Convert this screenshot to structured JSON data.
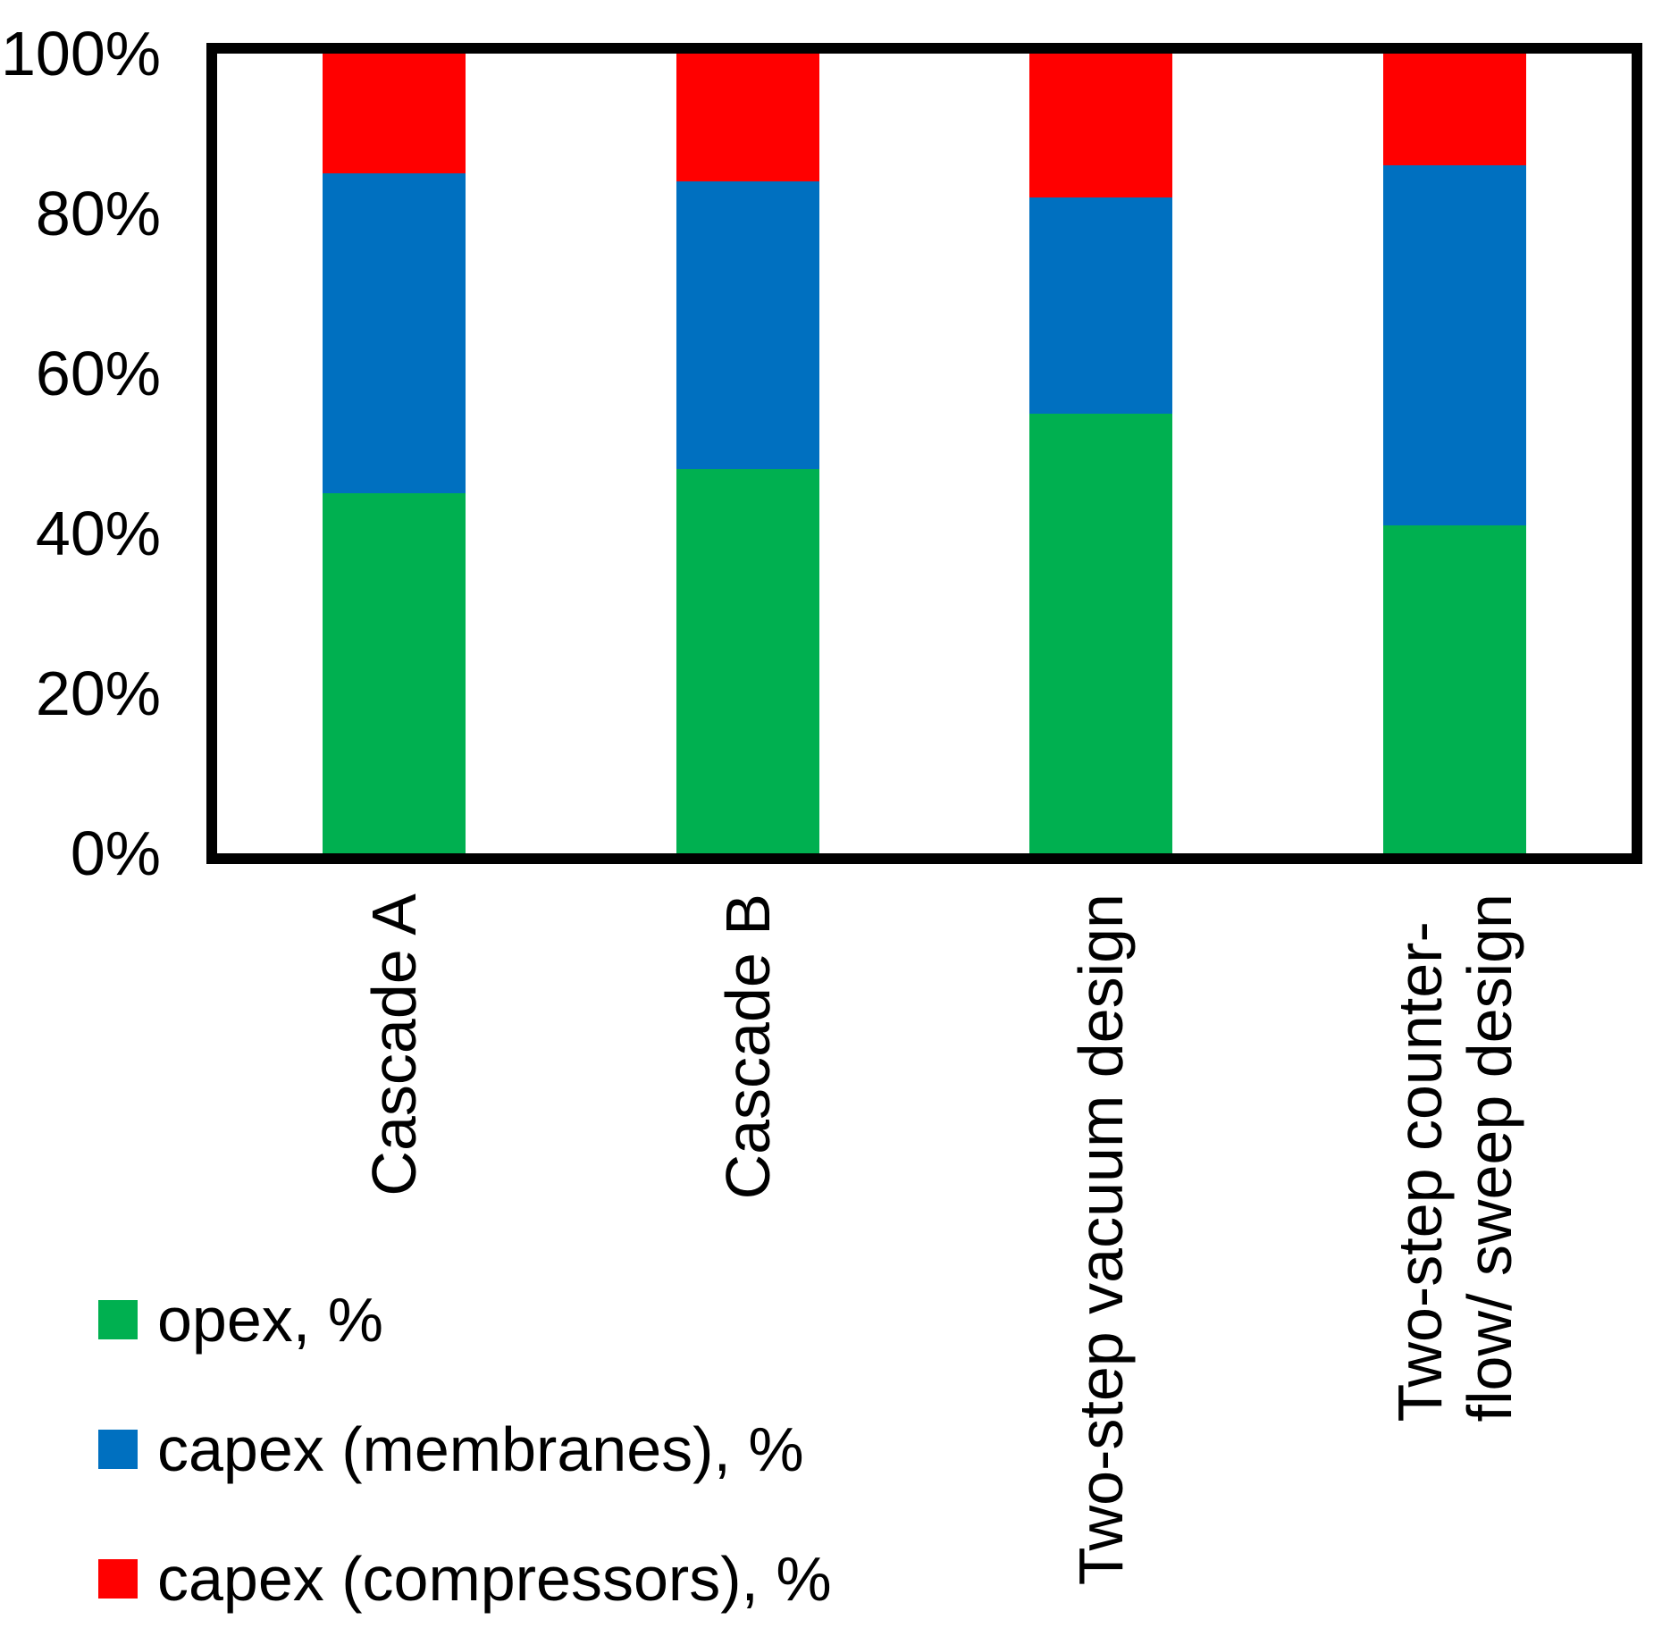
{
  "chart_data": {
    "type": "bar",
    "stacked": true,
    "title": "",
    "categories": [
      "Cascade A",
      "Cascade B",
      "Two-step vacuum design",
      "Two-step counter-\nflow/ sweep design"
    ],
    "series": [
      {
        "name": "opex, %",
        "color": "#00B050",
        "values": [
          45,
          48,
          55,
          41
        ]
      },
      {
        "name": "capex (membranes), %",
        "color": "#0070C0",
        "values": [
          40,
          36,
          27,
          45
        ]
      },
      {
        "name": "capex (compressors), %",
        "color": "#FF0000",
        "values": [
          15,
          16,
          18,
          14
        ]
      }
    ],
    "y_axis": {
      "ticks": [
        100,
        80,
        60,
        40,
        20,
        0
      ],
      "tick_labels": [
        "100%",
        "80%",
        "60%",
        "40%",
        "20%",
        "0%"
      ],
      "ylim": [
        0,
        100
      ],
      "grid": false
    },
    "legend_position": "bottom-left",
    "frame_color": "#000000",
    "background": "#FFFFFF"
  }
}
